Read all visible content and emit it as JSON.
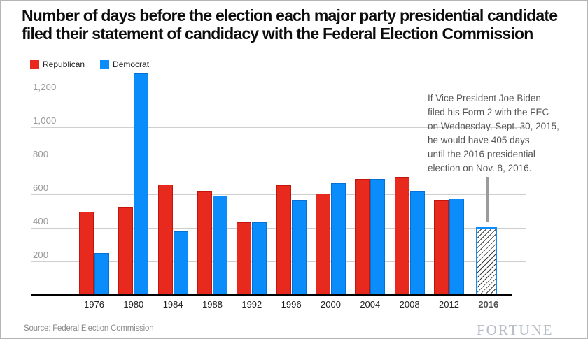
{
  "title": {
    "line1": "Number of days before the election each major party presidential candidate",
    "line2": "filed their statement of candidacy with the Federal Election Commission"
  },
  "legend": [
    {
      "label": "Republican",
      "color": "#e8291d"
    },
    {
      "label": "Democrat",
      "color": "#0a8cfa"
    }
  ],
  "annotation": {
    "text": "If Vice President Joe Biden\nfiled his Form 2 with the FEC\non Wednesday, Sept. 30, 2015,\nhe would have 405 days\nuntil the 2016 presidential\nelection on Nov. 8, 2016."
  },
  "footer": {
    "source": "Source: Federal Election Commission",
    "brand": "FORTUNE"
  },
  "chart_data": {
    "type": "bar",
    "title": "Number of days before the election each major party presidential candidate filed their statement of candidacy with the Federal Election Commission",
    "categories": [
      "1976",
      "1980",
      "1984",
      "1988",
      "1992",
      "1996",
      "2000",
      "2004",
      "2008",
      "2012",
      "2016"
    ],
    "series": [
      {
        "name": "Republican",
        "color": "#e8291d",
        "values": [
          495,
          525,
          660,
          620,
          435,
          655,
          605,
          690,
          705,
          565,
          null
        ]
      },
      {
        "name": "Democrat",
        "color": "#0a8cfa",
        "values": [
          250,
          1320,
          380,
          590,
          435,
          565,
          665,
          690,
          620,
          575,
          null
        ]
      }
    ],
    "projected_bar": {
      "year": "2016",
      "party": "Democrat",
      "value": 405,
      "style": "hatched-outline"
    },
    "xlabel": "",
    "ylabel": "",
    "ylim": [
      0,
      1400
    ],
    "yticks": [
      200,
      400,
      600,
      800,
      1000,
      1200
    ],
    "grid": true,
    "legend_position": "top-left"
  }
}
